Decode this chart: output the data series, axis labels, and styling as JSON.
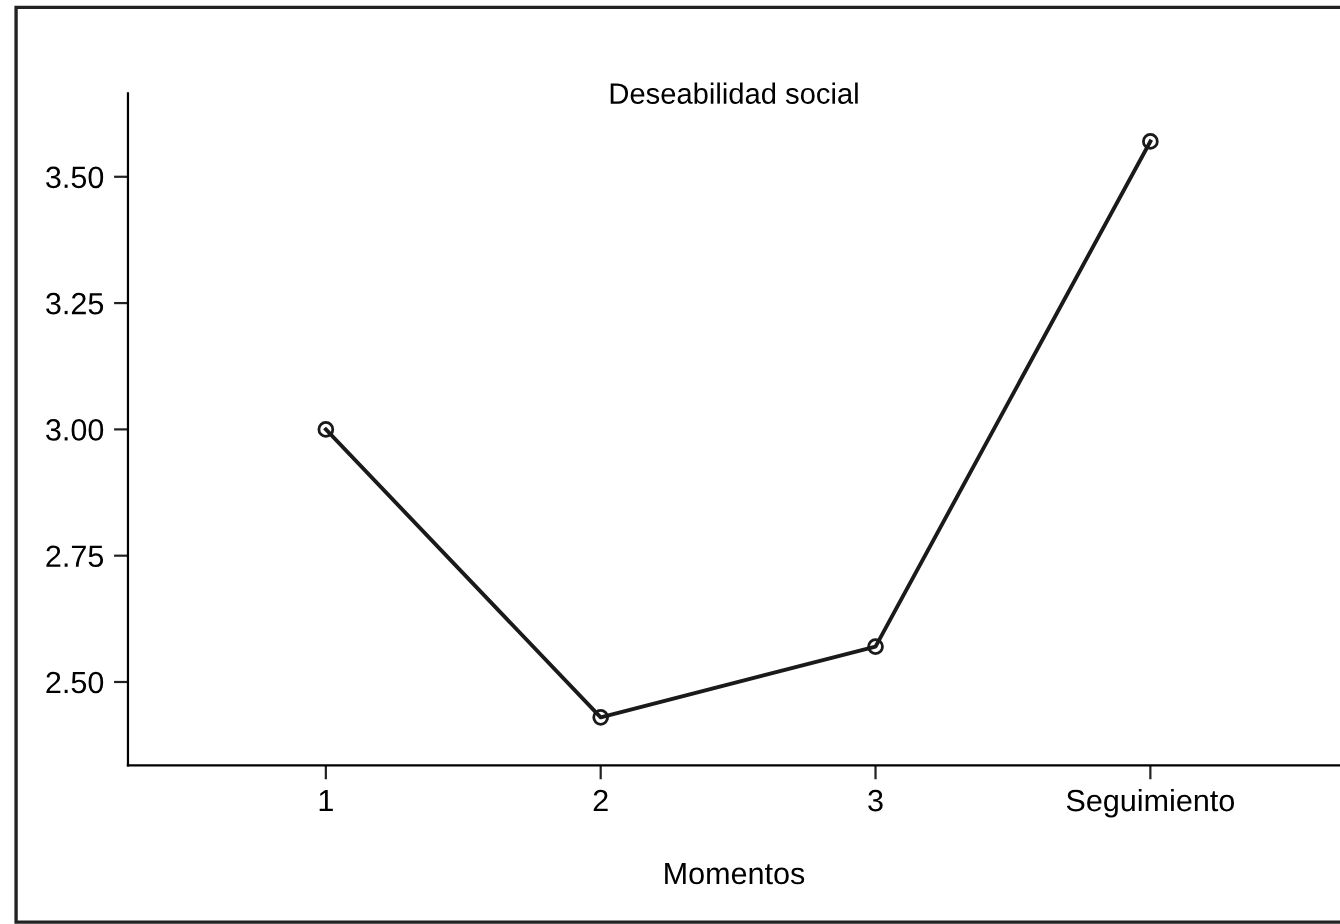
{
  "chart_data": {
    "type": "line",
    "title": "Deseabilidad social",
    "xlabel": "Momentos",
    "categories": [
      "1",
      "2",
      "3",
      "Seguimiento"
    ],
    "series": [
      {
        "color": "#1a1a1a",
        "values": [
          3.0,
          2.43,
          2.57,
          3.57
        ]
      }
    ],
    "ylim": [
      2.335,
      3.665
    ],
    "yticks": [
      {
        "value": 2.5,
        "label": "2.50"
      },
      {
        "value": 2.75,
        "label": "2.75"
      },
      {
        "value": 3.0,
        "label": "3.00"
      },
      {
        "value": 3.25,
        "label": "3.25"
      },
      {
        "value": 3.5,
        "label": "3.50"
      }
    ],
    "marker": "circle",
    "line_style": "solid",
    "grid": false,
    "legend": false
  }
}
